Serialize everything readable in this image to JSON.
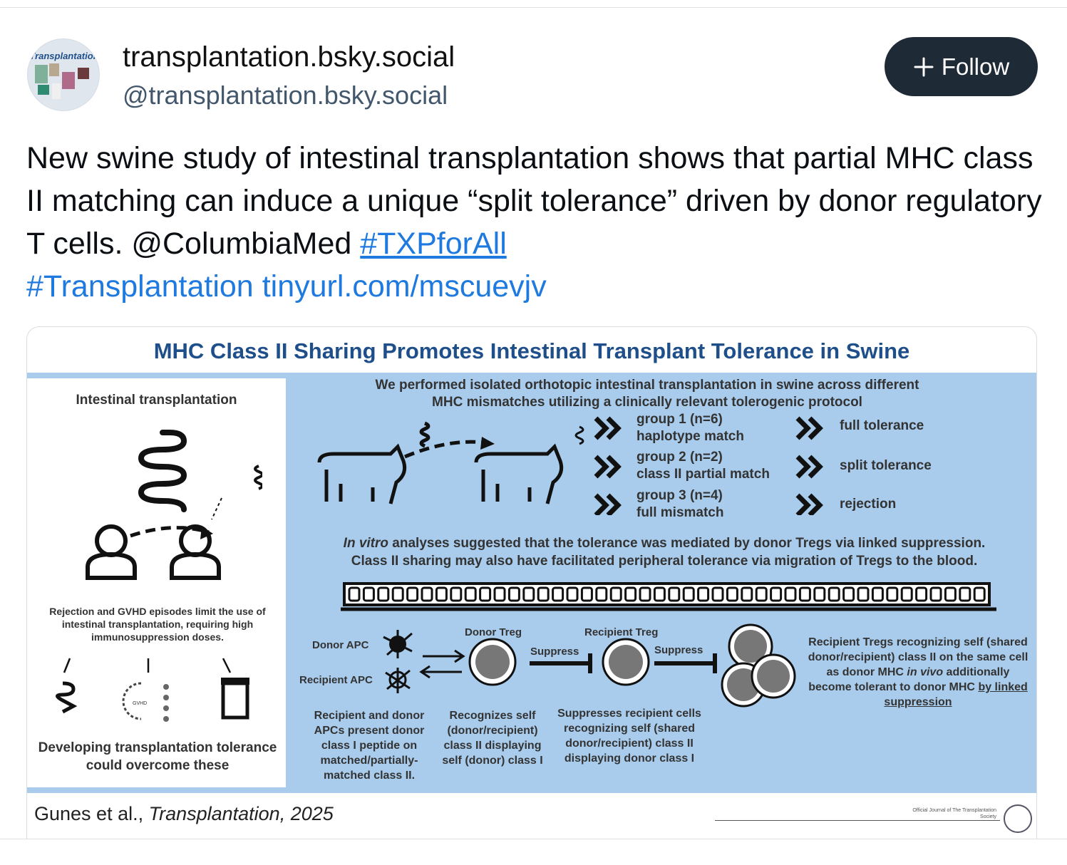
{
  "author": {
    "display_name": "transplantation.bsky.social",
    "handle": "@transplantation.bsky.social",
    "avatar_text": "Transplantation"
  },
  "follow_button": {
    "icon": "plus-icon",
    "label": "Follow"
  },
  "post": {
    "text": "New swine study of intestinal transplantation shows that partial MHC class II matching can induce a unique “split tolerance” driven by donor regulatory T cells. @ColumbiaMed ",
    "hashtag1": "#TXPforAll",
    "hashtag2": "#Transplantation",
    "link": "tinyurl.com/mscuevjv"
  },
  "image": {
    "title": "MHC Class II Sharing Promotes Intestinal Transplant Tolerance in Swine",
    "left_panel": {
      "heading": "Intestinal transplantation",
      "problem": "Rejection and GVHD episodes limit the use of intestinal transplantation, requiring high immunosuppression doses.",
      "gvhd_label": "GVHD",
      "conclusion": "Developing transplantation tolerance could overcome these"
    },
    "intro": "We performed isolated orthotopic intestinal transplantation in swine across different MHC mismatches utilizing a clinically relevant tolerogenic protocol",
    "groups": [
      {
        "name": "group 1 (n=6)",
        "match": "haplotype match",
        "outcome": "full tolerance"
      },
      {
        "name": "group 2 (n=2)",
        "match": "class II partial match",
        "outcome": "split tolerance"
      },
      {
        "name": "group 3 (n=4)",
        "match": "full mismatch",
        "outcome": "rejection"
      }
    ],
    "invitro_italic": "In vitro",
    "invitro": " analyses suggested that the tolerance was mediated by donor Tregs via linked suppression.",
    "invitro2": "Class II sharing may also have facilitated peripheral tolerance via migration of Tregs to the blood.",
    "mechanism": {
      "donor_apc": "Donor APC",
      "recipient_apc": "Recipient APC",
      "donor_treg": "Donor Treg",
      "recipient_treg": "Recipient Treg",
      "suppress1": "Suppress",
      "suppress2": "Suppress",
      "apc_desc": "Recipient and donor APCs present donor class I peptide on matched/partially-matched class II.",
      "donor_treg_desc": "Recognizes self (donor/recipient) class II displaying self (donor) class I",
      "recipient_treg_desc": "Suppresses recipient cells recognizing self (shared donor/recipient) class II displaying donor class I",
      "right_desc": "Recipient Tregs recognizing self (shared donor/recipient) class II on the same cell as donor MHC ",
      "right_desc_italic": "in vivo",
      "right_desc2": " additionally become tolerant to donor MHC ",
      "right_desc_underline": "by linked suppression"
    },
    "citation_authors": "Gunes et al., ",
    "citation_journal": "Transplantation, 2025",
    "seal_text": "Official Journal of The Transplantation Society"
  },
  "colors": {
    "accent": "#1f7ae0",
    "follow_bg": "#1f2a37",
    "panel_blue": "#a9ccec",
    "title_blue": "#1f4f8a"
  }
}
